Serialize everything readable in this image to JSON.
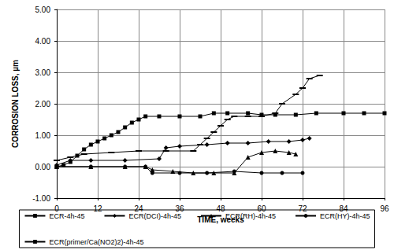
{
  "chart_data": {
    "type": "line",
    "x_label": "TIME, weeks",
    "y_label": "CORROSION LOSS, µm",
    "xlim": [
      0,
      96
    ],
    "xticks": [
      0,
      12,
      24,
      36,
      48,
      60,
      72,
      84,
      96
    ],
    "ylim": [
      -1,
      5
    ],
    "yticks": [
      {
        "value": -1,
        "label": "-1.00"
      },
      {
        "value": 0,
        "label": "0.00"
      },
      {
        "value": 1,
        "label": "1.00"
      },
      {
        "value": 2,
        "label": "2.00"
      },
      {
        "value": 3,
        "label": "3.00"
      },
      {
        "value": 4,
        "label": "4.00"
      },
      {
        "value": 5,
        "label": "5.00"
      }
    ],
    "grid": true,
    "legend": "bottom",
    "series": [
      {
        "name": "ECR-4h-45",
        "color": "#000000",
        "marker": "square",
        "x": [
          0,
          2,
          4,
          6,
          8,
          10,
          12,
          14,
          16,
          18,
          20,
          22,
          24,
          26,
          30,
          36,
          42,
          46,
          50,
          56,
          60,
          64,
          70,
          76,
          84,
          90,
          96
        ],
        "values": [
          0.0,
          0.05,
          0.15,
          0.35,
          0.55,
          0.7,
          0.8,
          0.9,
          1.0,
          1.1,
          1.25,
          1.4,
          1.5,
          1.6,
          1.6,
          1.6,
          1.6,
          1.7,
          1.7,
          1.7,
          1.65,
          1.65,
          1.65,
          1.7,
          1.7,
          1.7,
          1.7
        ]
      },
      {
        "name": "ECR(DCI)-4h-45",
        "color": "#000000",
        "marker": "diamond",
        "x": [
          0,
          4,
          10,
          20,
          30,
          32,
          36,
          44,
          50,
          56,
          62,
          68,
          72,
          74
        ],
        "values": [
          0.05,
          0.2,
          0.2,
          0.2,
          0.25,
          0.6,
          0.65,
          0.7,
          0.75,
          0.75,
          0.8,
          0.8,
          0.85,
          0.9
        ]
      },
      {
        "name": "ECR(RH)-4h-45",
        "color": "#000000",
        "marker": "triangle",
        "x": [
          0,
          10,
          20,
          26,
          28,
          34,
          40,
          46,
          52,
          56,
          60,
          64,
          68,
          70
        ],
        "values": [
          0.0,
          0.0,
          0.0,
          0.0,
          -0.1,
          -0.15,
          -0.2,
          -0.2,
          -0.2,
          0.3,
          0.45,
          0.5,
          0.45,
          0.4
        ]
      },
      {
        "name": "ECR(HY)-4h-45",
        "color": "#000000",
        "marker": "circle",
        "x": [
          0,
          10,
          20,
          26,
          28,
          36,
          44,
          52,
          60,
          66,
          72
        ],
        "values": [
          0.0,
          0.0,
          0.0,
          0.0,
          -0.2,
          -0.2,
          -0.2,
          -0.15,
          -0.2,
          -0.2,
          -0.2
        ]
      },
      {
        "name": "ECR(primer/Ca(NO2)2)-4h-45",
        "color": "#000000",
        "marker": "dash",
        "x": [
          0,
          4,
          8,
          16,
          24,
          32,
          40,
          42,
          44,
          46,
          48,
          50,
          52,
          56,
          60,
          64,
          66,
          70,
          72,
          74,
          77
        ],
        "values": [
          0.2,
          0.3,
          0.4,
          0.45,
          0.5,
          0.5,
          0.5,
          0.7,
          0.9,
          1.1,
          1.3,
          1.5,
          1.6,
          1.6,
          1.6,
          1.7,
          2.0,
          2.3,
          2.5,
          2.8,
          2.9
        ]
      }
    ]
  }
}
